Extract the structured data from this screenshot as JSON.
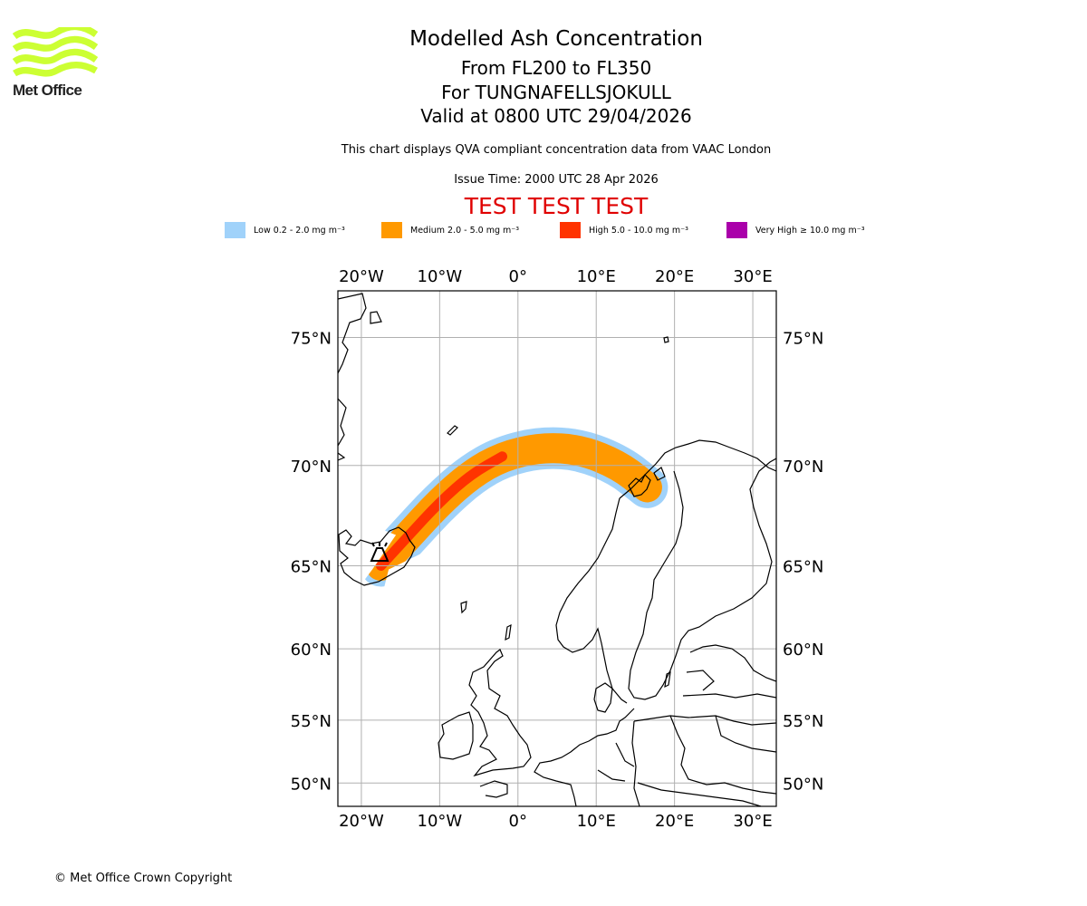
{
  "logo": {
    "text": "Met Office",
    "color": "#ccff33"
  },
  "title": {
    "line1": "Modelled Ash Concentration",
    "line2": "From FL200 to FL350",
    "line3": "For TUNGNAFELLSJOKULL",
    "line4": "Valid at 0800 UTC 29/04/2026"
  },
  "subtitle": "This chart displays QVA compliant concentration data from VAAC London",
  "issue_time": "Issue Time: 2000 UTC 28 Apr 2026",
  "test_banner": {
    "text": "TEST TEST TEST",
    "color": "#e00000"
  },
  "legend": [
    {
      "label": "Low 0.2 - 2.0 mg m⁻³",
      "color": "#a0d2fa"
    },
    {
      "label": "Medium 2.0 - 5.0 mg m⁻³",
      "color": "#ff9900"
    },
    {
      "label": "High 5.0 - 10.0 mg m⁻³",
      "color": "#ff3300"
    },
    {
      "label": "Very High  ≥  10.0 mg m⁻³",
      "color": "#aa00aa"
    }
  ],
  "chart_data": {
    "type": "map",
    "title": "Modelled Ash Concentration",
    "volcano": {
      "name": "TUNGNAFELLSJOKULL",
      "lon": -17.9,
      "lat": 64.7
    },
    "extent": {
      "lon": [
        -23,
        33
      ],
      "lat": [
        48,
        76.5
      ]
    },
    "lon_ticks": [
      -20,
      -10,
      0,
      10,
      20,
      30
    ],
    "lon_tick_labels": [
      "20°W",
      "10°W",
      "0°",
      "10°E",
      "20°E",
      "30°E"
    ],
    "lat_ticks": [
      75,
      70,
      65,
      60,
      55,
      50
    ],
    "lat_tick_labels": [
      "75°N",
      "70°N",
      "65°N",
      "60°N",
      "55°N",
      "50°N"
    ],
    "grid": true,
    "ash_plume_path": {
      "description_levels": [
        "Low",
        "Medium",
        "High"
      ],
      "centerline": [
        [
          -17.5,
          65.0
        ],
        [
          -14,
          66.6
        ],
        [
          -10,
          68.3
        ],
        [
          -6,
          69.6
        ],
        [
          -2,
          70.4
        ],
        [
          3,
          70.8
        ],
        [
          8,
          70.7
        ],
        [
          13,
          70.0
        ],
        [
          16.5,
          69.0
        ]
      ]
    }
  },
  "footer": "© Met Office Crown Copyright"
}
